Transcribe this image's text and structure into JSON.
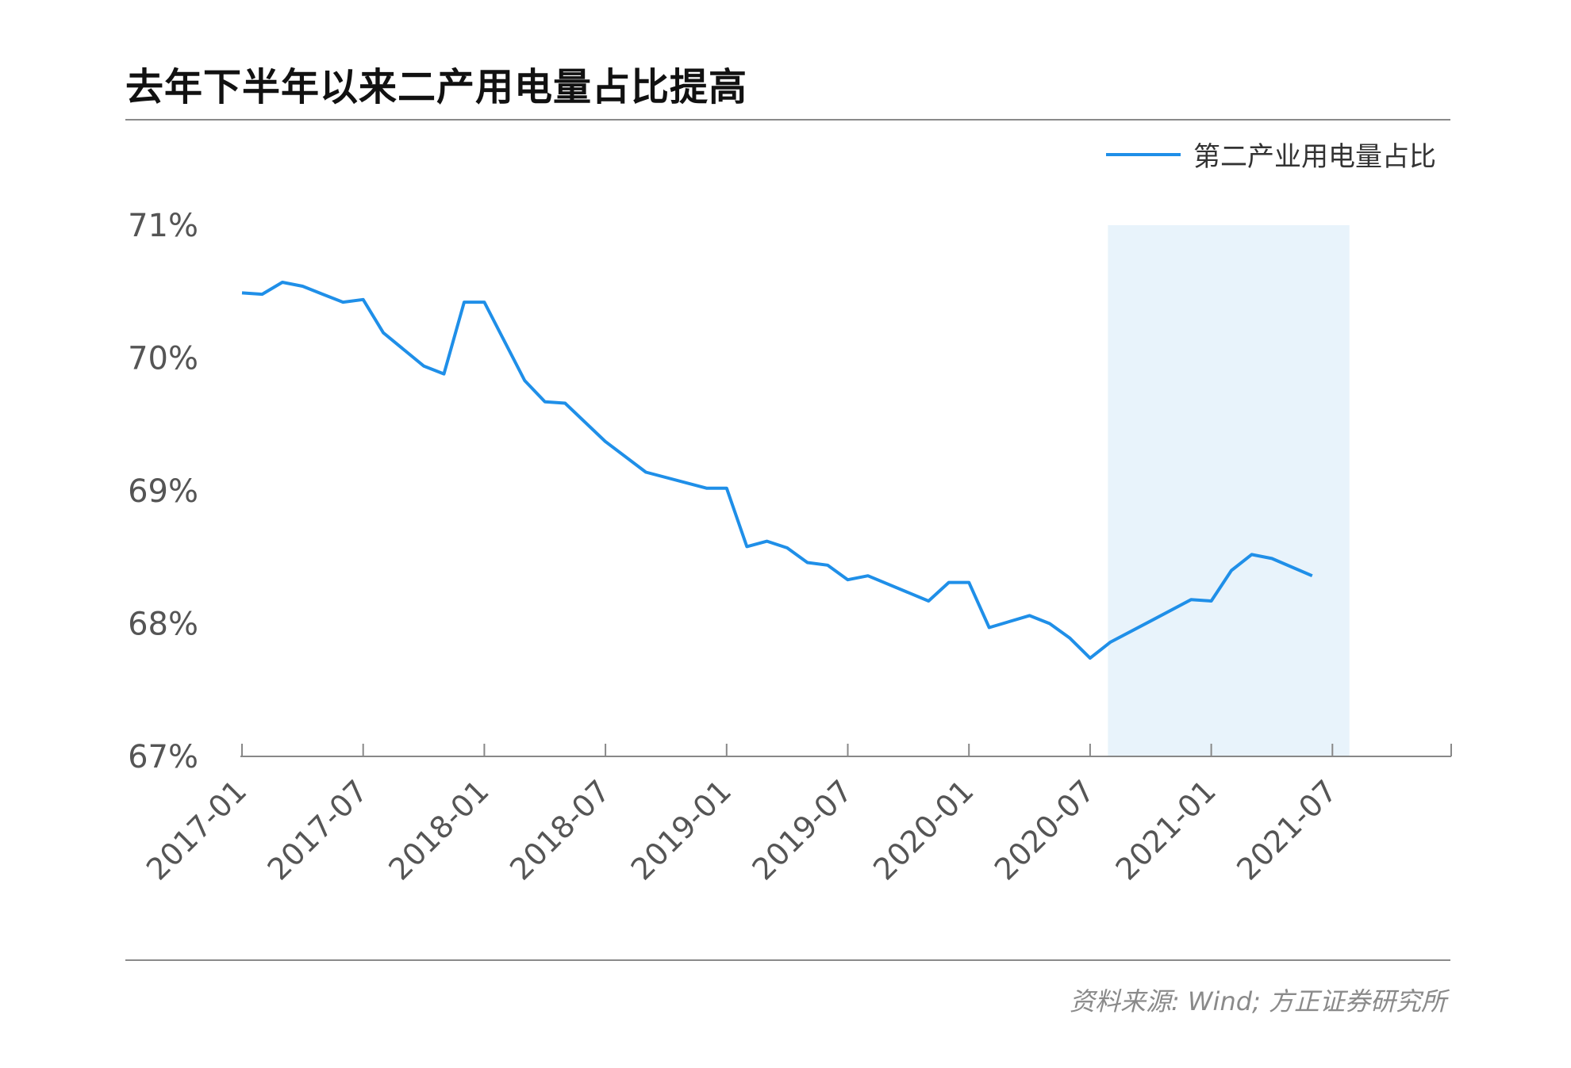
{
  "header": {
    "title": "去年下半年以来二产用电量占比提高"
  },
  "legend": {
    "label": "第二产业用电量占比"
  },
  "footer": {
    "source": "资料来源: Wind; 方正证券研究所"
  },
  "colors": {
    "line": "#1f8fe8",
    "highlight": "#e8f3fb",
    "axis": "#888888"
  },
  "chart_data": {
    "type": "line",
    "title": "去年下半年以来二产用电量占比提高",
    "ylim": [
      67,
      71
    ],
    "y_ticks": [
      "67%",
      "68%",
      "69%",
      "70%",
      "71%"
    ],
    "x_ticks": [
      "2017-01",
      "2017-07",
      "2018-01",
      "2018-07",
      "2019-01",
      "2019-07",
      "2020-01",
      "2020-07",
      "2021-01",
      "2021-07"
    ],
    "highlight_range": [
      "2020-08",
      "2021-08"
    ],
    "series": [
      {
        "name": "第二产业用电量占比",
        "points": [
          [
            "2017-01",
            70.49
          ],
          [
            "2017-02",
            70.48
          ],
          [
            "2017-03",
            70.57
          ],
          [
            "2017-04",
            70.54
          ],
          [
            "2017-05",
            70.48
          ],
          [
            "2017-06",
            70.42
          ],
          [
            "2017-07",
            70.44
          ],
          [
            "2017-08",
            70.19
          ],
          [
            "2017-10",
            69.94
          ],
          [
            "2017-11",
            69.88
          ],
          [
            "2017-12",
            70.42
          ],
          [
            "2018-01",
            70.42
          ],
          [
            "2018-03",
            69.83
          ],
          [
            "2018-04",
            69.67
          ],
          [
            "2018-05",
            69.66
          ],
          [
            "2018-07",
            69.37
          ],
          [
            "2018-09",
            69.14
          ],
          [
            "2018-12",
            69.02
          ],
          [
            "2019-01",
            69.02
          ],
          [
            "2019-02",
            68.58
          ],
          [
            "2019-03",
            68.62
          ],
          [
            "2019-04",
            68.57
          ],
          [
            "2019-05",
            68.46
          ],
          [
            "2019-06",
            68.44
          ],
          [
            "2019-07",
            68.33
          ],
          [
            "2019-08",
            68.36
          ],
          [
            "2019-11",
            68.17
          ],
          [
            "2019-12",
            68.31
          ],
          [
            "2020-01",
            68.31
          ],
          [
            "2020-02",
            67.97
          ],
          [
            "2020-04",
            68.06
          ],
          [
            "2020-05",
            68.0
          ],
          [
            "2020-06",
            67.89
          ],
          [
            "2020-07",
            67.74
          ],
          [
            "2020-08",
            67.86
          ],
          [
            "2020-10",
            68.02
          ],
          [
            "2020-12",
            68.18
          ],
          [
            "2021-01",
            68.17
          ],
          [
            "2021-02",
            68.4
          ],
          [
            "2021-03",
            68.52
          ],
          [
            "2021-04",
            68.49
          ],
          [
            "2021-06",
            68.36
          ]
        ]
      }
    ]
  }
}
